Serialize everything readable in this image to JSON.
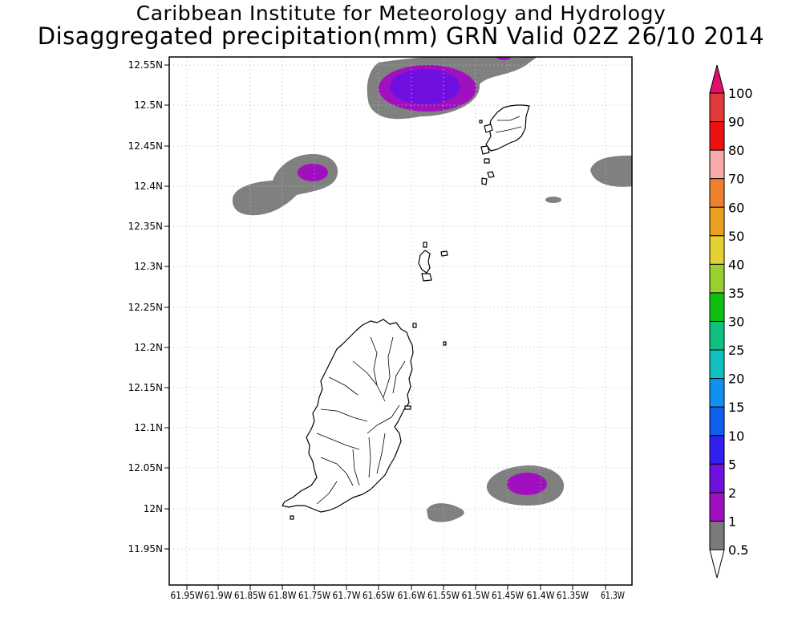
{
  "title_line1": "Caribbean Institute for Meteorology and Hydrology",
  "title_line2": "Disaggregated precipitation(mm) GRN Valid 02Z 26/10 2014",
  "y_labels": [
    "12.55N",
    "12.5N",
    "12.45N",
    "12.4N",
    "12.35N",
    "12.3N",
    "12.25N",
    "12.2N",
    "12.15N",
    "12.1N",
    "12.05N",
    "12N",
    "11.95N"
  ],
  "x_labels": [
    "61.95W",
    "61.9W",
    "61.85W",
    "61.8W",
    "61.75W",
    "61.7W",
    "61.65W",
    "61.6W",
    "61.55W",
    "61.5W",
    "61.45W",
    "61.4W",
    "61.35W",
    "61.3W"
  ],
  "colorbar": {
    "labels": [
      "100",
      "90",
      "80",
      "70",
      "60",
      "50",
      "40",
      "35",
      "30",
      "25",
      "20",
      "15",
      "10",
      "5",
      "2",
      "1",
      "0.5"
    ],
    "colors": [
      "#e23a3a",
      "#ee1111",
      "#f8aaaa",
      "#ee8030",
      "#e8a020",
      "#e4d030",
      "#98d030",
      "#10c010",
      "#10c080",
      "#10c0c0",
      "#1090f0",
      "#1060f0",
      "#3020f0",
      "#7010e0",
      "#a010c0",
      "#7a7a7a"
    ],
    "top_arrow_color": "#e0106a",
    "bottom_arrow_color": "#ffffff"
  },
  "precip_classes": {
    "light": "0.5-1 mm (gray)",
    "medium": "1-2 mm (magenta)",
    "heavy": "2-5 mm (violet)"
  }
}
